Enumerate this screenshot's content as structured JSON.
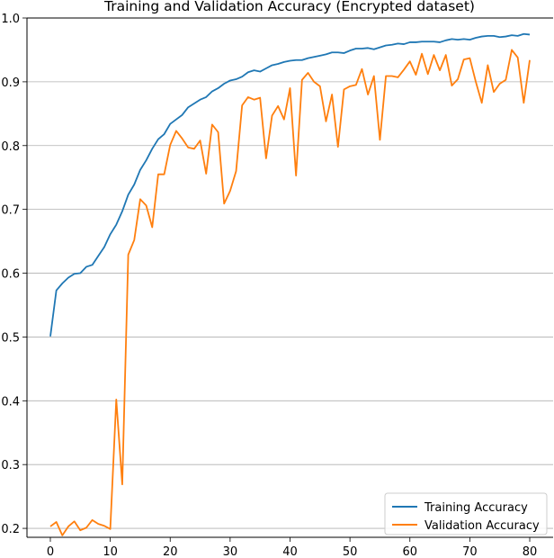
{
  "chart_data": {
    "type": "line",
    "title": "Training and Validation Accuracy (Encrypted dataset)",
    "xlabel": "",
    "ylabel": "",
    "xlim": [
      -3.9,
      83.9
    ],
    "ylim": [
      0.186,
      1.0
    ],
    "x_ticks": [
      0,
      10,
      20,
      30,
      40,
      50,
      60,
      70,
      80
    ],
    "y_ticks": [
      0.2,
      0.3,
      0.4,
      0.5,
      0.6,
      0.7,
      0.8,
      0.9,
      1.0
    ],
    "grid": "horizontal",
    "legend_position": "lower-right",
    "x": [
      0,
      1,
      2,
      3,
      4,
      5,
      6,
      7,
      8,
      9,
      10,
      11,
      12,
      13,
      14,
      15,
      16,
      17,
      18,
      19,
      20,
      21,
      22,
      23,
      24,
      25,
      26,
      27,
      28,
      29,
      30,
      31,
      32,
      33,
      34,
      35,
      36,
      37,
      38,
      39,
      40,
      41,
      42,
      43,
      44,
      45,
      46,
      47,
      48,
      49,
      50,
      51,
      52,
      53,
      54,
      55,
      56,
      57,
      58,
      59,
      60,
      61,
      62,
      63,
      64,
      65,
      66,
      67,
      68,
      69,
      70,
      71,
      72,
      73,
      74,
      75,
      76,
      77,
      78,
      79,
      80
    ],
    "series": [
      {
        "name": "Training Accuracy",
        "color": "#1f77b4",
        "values": [
          0.501,
          0.573,
          0.584,
          0.593,
          0.599,
          0.6,
          0.61,
          0.613,
          0.627,
          0.641,
          0.661,
          0.676,
          0.697,
          0.723,
          0.739,
          0.762,
          0.777,
          0.795,
          0.81,
          0.818,
          0.834,
          0.841,
          0.848,
          0.86,
          0.866,
          0.872,
          0.876,
          0.885,
          0.89,
          0.897,
          0.902,
          0.904,
          0.908,
          0.915,
          0.918,
          0.916,
          0.921,
          0.926,
          0.928,
          0.931,
          0.933,
          0.934,
          0.934,
          0.937,
          0.939,
          0.941,
          0.943,
          0.946,
          0.946,
          0.945,
          0.949,
          0.952,
          0.952,
          0.953,
          0.951,
          0.954,
          0.957,
          0.958,
          0.96,
          0.959,
          0.962,
          0.962,
          0.963,
          0.963,
          0.963,
          0.962,
          0.965,
          0.967,
          0.966,
          0.967,
          0.966,
          0.969,
          0.971,
          0.972,
          0.972,
          0.97,
          0.971,
          0.973,
          0.972,
          0.975,
          0.974
        ]
      },
      {
        "name": "Validation Accuracy",
        "color": "#ff7f0e",
        "values": [
          0.203,
          0.21,
          0.189,
          0.203,
          0.211,
          0.197,
          0.201,
          0.213,
          0.207,
          0.204,
          0.199,
          0.402,
          0.269,
          0.629,
          0.652,
          0.716,
          0.706,
          0.672,
          0.755,
          0.755,
          0.801,
          0.823,
          0.811,
          0.797,
          0.795,
          0.808,
          0.756,
          0.833,
          0.821,
          0.709,
          0.729,
          0.76,
          0.863,
          0.876,
          0.872,
          0.875,
          0.78,
          0.847,
          0.862,
          0.841,
          0.89,
          0.753,
          0.903,
          0.914,
          0.9,
          0.893,
          0.838,
          0.88,
          0.798,
          0.888,
          0.893,
          0.895,
          0.92,
          0.88,
          0.909,
          0.809,
          0.909,
          0.909,
          0.907,
          0.919,
          0.932,
          0.911,
          0.944,
          0.912,
          0.942,
          0.918,
          0.942,
          0.894,
          0.904,
          0.935,
          0.937,
          0.9,
          0.867,
          0.926,
          0.884,
          0.897,
          0.903,
          0.95,
          0.938,
          0.867,
          0.934
        ]
      }
    ]
  }
}
